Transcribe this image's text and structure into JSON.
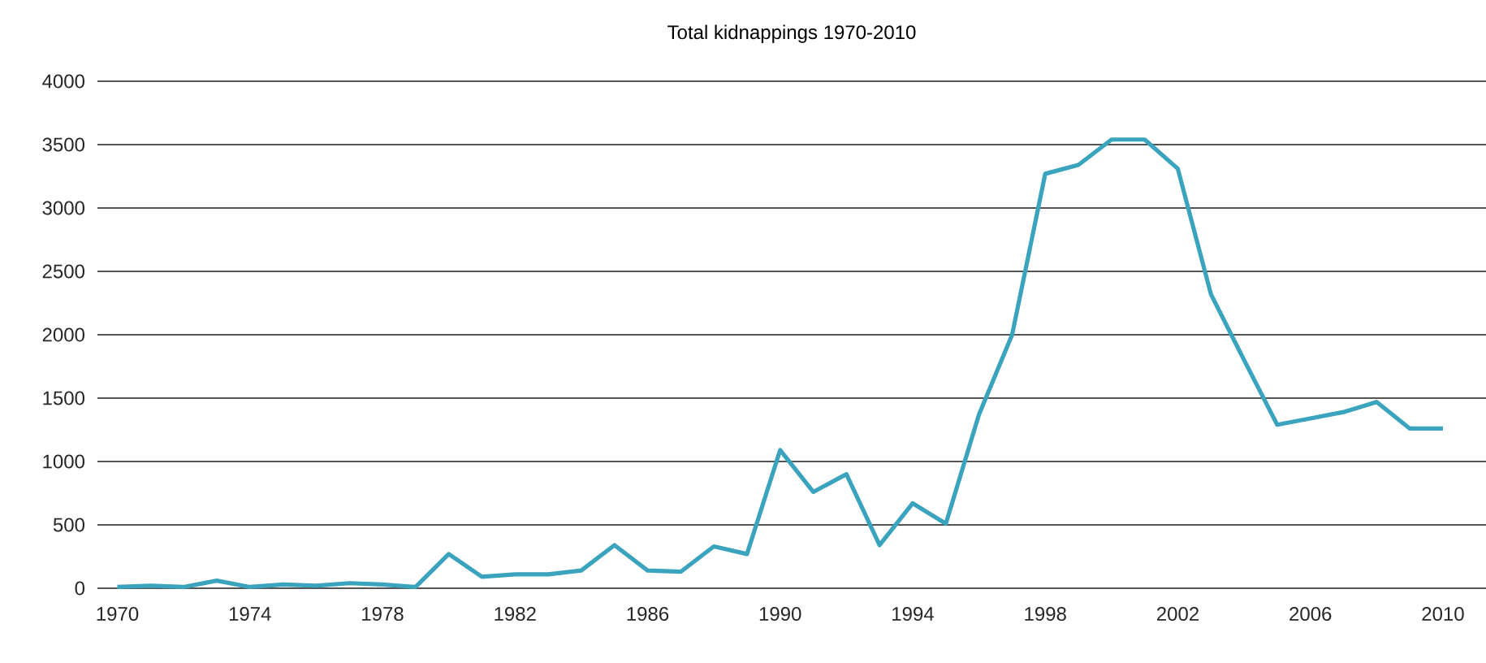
{
  "chart_data": {
    "type": "line",
    "title": "Total kidnappings 1970-2010",
    "x": [
      1970,
      1971,
      1972,
      1973,
      1974,
      1975,
      1976,
      1977,
      1978,
      1979,
      1980,
      1981,
      1982,
      1983,
      1984,
      1985,
      1986,
      1987,
      1988,
      1989,
      1990,
      1991,
      1992,
      1993,
      1994,
      1995,
      1996,
      1997,
      1998,
      1999,
      2000,
      2001,
      2002,
      2003,
      2004,
      2005,
      2006,
      2007,
      2008,
      2009,
      2010
    ],
    "series": [
      {
        "color": "#3aa3bd",
        "values": [
          10,
          20,
          10,
          60,
          10,
          30,
          20,
          40,
          30,
          10,
          270,
          90,
          110,
          110,
          140,
          340,
          140,
          130,
          330,
          270,
          1090,
          760,
          900,
          340,
          670,
          510,
          1370,
          2000,
          3270,
          3340,
          3540,
          3540,
          3310,
          2320,
          1800,
          1290,
          1340,
          1390,
          1470,
          1260,
          1260
        ]
      }
    ],
    "xlim": [
      1969.4,
      2011.3
    ],
    "ylim": [
      0,
      4000
    ],
    "xticks": [
      1970,
      1974,
      1978,
      1982,
      1986,
      1990,
      1994,
      1998,
      2002,
      2006,
      2010
    ],
    "yticks": [
      0,
      500,
      1000,
      1500,
      2000,
      2500,
      3000,
      3500,
      4000
    ],
    "grid": "y",
    "marker": "none",
    "line_style": "solid"
  }
}
